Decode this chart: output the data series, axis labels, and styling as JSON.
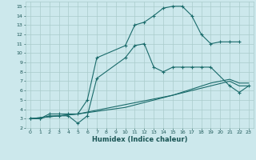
{
  "xlabel": "Humidex (Indice chaleur)",
  "ylabel": "",
  "xlim": [
    -0.5,
    23.5
  ],
  "ylim": [
    2,
    15.5
  ],
  "xticks": [
    0,
    1,
    2,
    3,
    4,
    5,
    6,
    7,
    8,
    9,
    10,
    11,
    12,
    13,
    14,
    15,
    16,
    17,
    18,
    19,
    20,
    21,
    22,
    23
  ],
  "yticks": [
    2,
    3,
    4,
    5,
    6,
    7,
    8,
    9,
    10,
    11,
    12,
    13,
    14,
    15
  ],
  "bg_color": "#cce8ec",
  "grid_color": "#aacccc",
  "line_color": "#1a6b6b",
  "line2": [
    [
      0,
      3
    ],
    [
      1,
      3
    ],
    [
      2,
      3.5
    ],
    [
      3,
      3.5
    ],
    [
      4,
      3.5
    ],
    [
      5,
      3.5
    ],
    [
      6,
      5.0
    ],
    [
      7,
      9.5
    ],
    [
      10,
      10.8
    ],
    [
      11,
      13.0
    ],
    [
      12,
      13.3
    ],
    [
      13,
      14.0
    ],
    [
      14,
      14.8
    ],
    [
      15,
      15.0
    ],
    [
      16,
      15.0
    ],
    [
      17,
      14.0
    ],
    [
      18,
      12.0
    ],
    [
      19,
      11.0
    ],
    [
      20,
      11.2
    ],
    [
      21,
      11.2
    ],
    [
      22,
      11.2
    ]
  ],
  "line1": [
    [
      0,
      3
    ],
    [
      1,
      3
    ],
    [
      2,
      3.3
    ],
    [
      3,
      3.3
    ],
    [
      4,
      3.3
    ],
    [
      5,
      2.5
    ],
    [
      6,
      3.3
    ],
    [
      7,
      7.3
    ],
    [
      10,
      9.5
    ],
    [
      11,
      10.8
    ],
    [
      12,
      11.0
    ],
    [
      13,
      8.5
    ],
    [
      14,
      8.0
    ],
    [
      15,
      8.5
    ],
    [
      16,
      8.5
    ],
    [
      17,
      8.5
    ],
    [
      18,
      8.5
    ],
    [
      19,
      8.5
    ],
    [
      21,
      6.5
    ],
    [
      22,
      5.8
    ],
    [
      23,
      6.5
    ]
  ],
  "line3": [
    [
      0,
      3
    ],
    [
      5,
      3.5
    ],
    [
      10,
      4.5
    ],
    [
      15,
      5.5
    ],
    [
      19,
      6.5
    ],
    [
      21,
      7.0
    ],
    [
      22,
      6.5
    ],
    [
      23,
      6.5
    ]
  ],
  "line4": [
    [
      0,
      3
    ],
    [
      5,
      3.5
    ],
    [
      10,
      4.2
    ],
    [
      15,
      5.5
    ],
    [
      19,
      6.8
    ],
    [
      21,
      7.2
    ],
    [
      22,
      6.8
    ],
    [
      23,
      6.8
    ]
  ]
}
